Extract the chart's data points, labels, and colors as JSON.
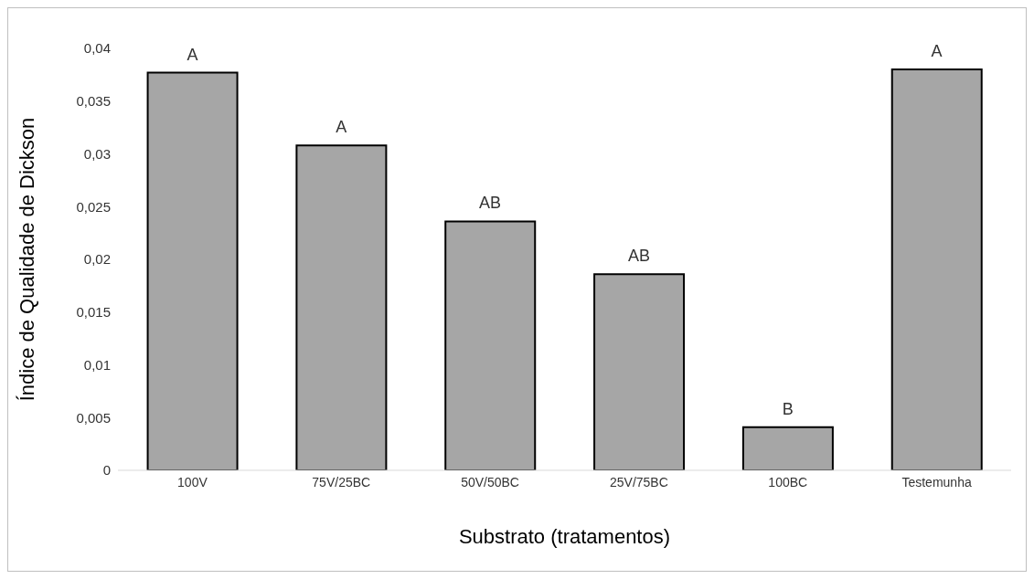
{
  "chart_data": {
    "type": "bar",
    "xlabel": "Substrato (tratamentos)",
    "ylabel": "Índice de Qualidade de Dickson",
    "categories": [
      "100V",
      "75V/25BC",
      "50V/50BC",
      "25V/75BC",
      "100BC",
      "Testemunha"
    ],
    "values": [
      0.0377,
      0.0308,
      0.0236,
      0.0186,
      0.0041,
      0.038
    ],
    "color": "#a6a6a6",
    "ylim": [
      0,
      0.04
    ],
    "yticks": [
      {
        "value": 0,
        "label": "0"
      },
      {
        "value": 0.005,
        "label": "0,005"
      },
      {
        "value": 0.01,
        "label": "0,01"
      },
      {
        "value": 0.015,
        "label": "0,015"
      },
      {
        "value": 0.02,
        "label": "0,02"
      },
      {
        "value": 0.025,
        "label": "0,025"
      },
      {
        "value": 0.03,
        "label": "0,03"
      },
      {
        "value": 0.035,
        "label": "0,035"
      },
      {
        "value": 0.04,
        "label": "0,04"
      }
    ],
    "grid": false,
    "legend": false,
    "annotations": [
      {
        "text": "A",
        "x": "100V",
        "y": 0.0377
      },
      {
        "text": "A",
        "x": "75V/25BC",
        "y": 0.0308
      },
      {
        "text": "AB",
        "x": "50V/50BC",
        "y": 0.0236
      },
      {
        "text": "AB",
        "x": "25V/75BC",
        "y": 0.0186
      },
      {
        "text": "B",
        "x": "100BC",
        "y": 0.0041
      },
      {
        "text": "A",
        "x": "Testemunha",
        "y": 0.038
      }
    ]
  }
}
